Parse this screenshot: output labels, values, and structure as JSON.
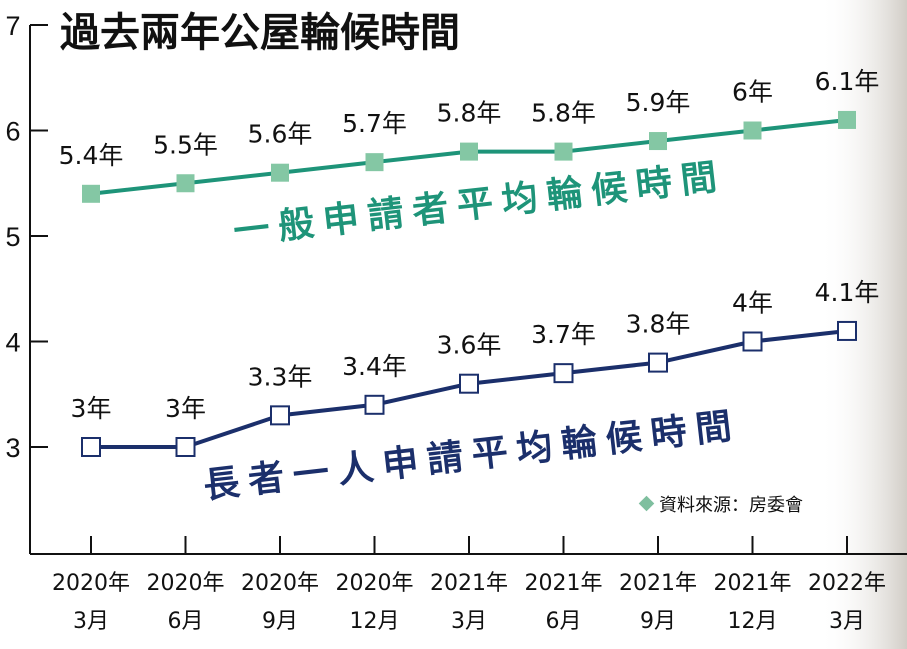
{
  "title": "過去兩年公屋輪候時間",
  "source": {
    "text": "資料來源：房委會",
    "marker_icon": "diamond-icon",
    "marker_color": "#7fbf9f"
  },
  "chart_data": {
    "type": "line",
    "title": "過去兩年公屋輪候時間",
    "categories": [
      "2020年\n3月",
      "2020年\n6月",
      "2020年\n9月",
      "2020年\n12月",
      "2021年\n3月",
      "2021年\n6月",
      "2021年\n9月",
      "2021年\n12月",
      "2022年\n3月"
    ],
    "y_ticks": [
      3,
      4,
      5,
      6,
      7
    ],
    "ylim": [
      2,
      7
    ],
    "grid": false,
    "series": [
      {
        "name": "一般申請者平均輪候時間",
        "values": [
          5.4,
          5.5,
          5.6,
          5.7,
          5.8,
          5.8,
          5.9,
          6.0,
          6.1
        ],
        "data_labels": [
          "5.4年",
          "5.5年",
          "5.6年",
          "5.7年",
          "5.8年",
          "5.8年",
          "5.9年",
          "6年",
          "6.1年"
        ],
        "line_color": "#1e9479",
        "marker_fill": "#84c7a4",
        "marker": "filled-square"
      },
      {
        "name": "長者一人申請平均輪候時間",
        "values": [
          3.0,
          3.0,
          3.3,
          3.4,
          3.6,
          3.7,
          3.8,
          4.0,
          4.1
        ],
        "data_labels": [
          "3年",
          "3年",
          "3.3年",
          "3.4年",
          "3.6年",
          "3.7年",
          "3.8年",
          "4年",
          "4.1年"
        ],
        "line_color": "#1b2f6b",
        "marker_fill": "#ffffff",
        "marker": "hollow-square"
      }
    ]
  }
}
